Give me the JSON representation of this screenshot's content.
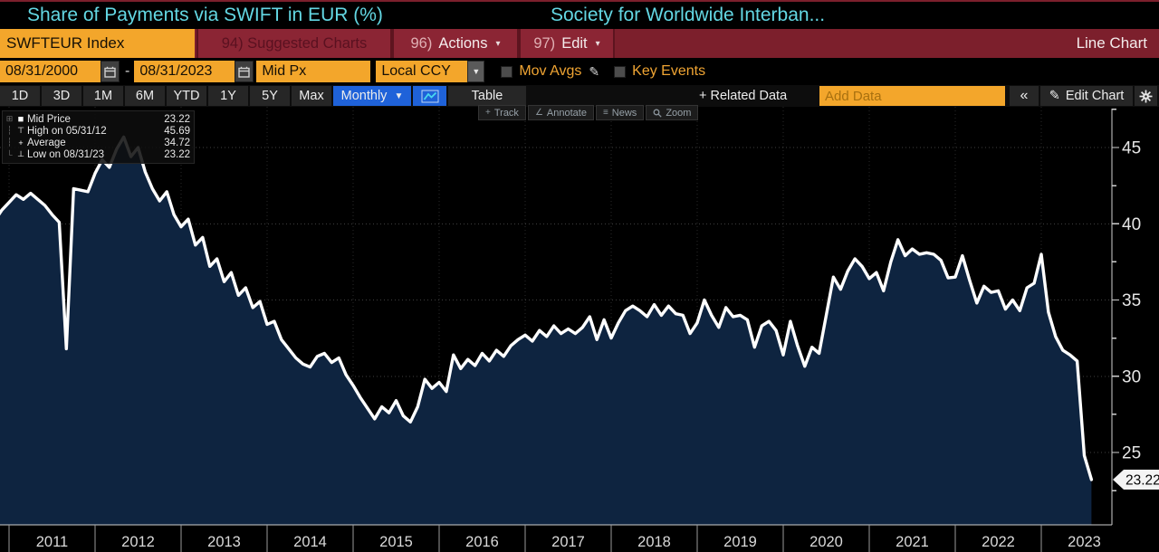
{
  "title_bar": {
    "title": "Share of Payments via SWIFT in EUR (%)",
    "subtitle": "Society for Worldwide Interban..."
  },
  "menu_bar": {
    "ticker": "SWFTEUR Index",
    "suggested_charts": "94) Suggested Charts",
    "actions_num": "96)",
    "actions_label": "Actions",
    "edit_num": "97)",
    "edit_label": "Edit",
    "right_label": "Line Chart"
  },
  "settings_bar": {
    "date_from": "08/31/2000",
    "date_sep": "-",
    "date_to": "08/31/2023",
    "price_field": "Mid Px",
    "currency": "Local CCY",
    "mov_avgs_label": "Mov Avgs",
    "key_events_label": "Key Events"
  },
  "toolbar": {
    "periods": [
      "1D",
      "3D",
      "1M",
      "6M",
      "YTD",
      "1Y",
      "5Y",
      "Max"
    ],
    "frequency": "Monthly",
    "table_label": "Table",
    "related_data_label": "+ Related Data",
    "add_data_placeholder": "Add Data",
    "collapse_label": "«",
    "edit_chart_label": "Edit Chart"
  },
  "chart_tools": {
    "track": "Track",
    "annotate": "Annotate",
    "news": "News",
    "zoom": "Zoom"
  },
  "legend": {
    "items": [
      {
        "tree": "⊞",
        "icon": "■",
        "label": "Mid Price",
        "value": "23.22"
      },
      {
        "tree": "┆",
        "icon": "⊤",
        "label": "High on 05/31/12",
        "value": "45.69"
      },
      {
        "tree": "┆",
        "icon": "+",
        "label": "Average",
        "value": "34.72"
      },
      {
        "tree": "└",
        "icon": "⊥",
        "label": "Low on 08/31/23",
        "value": "23.22"
      }
    ]
  },
  "last_price_tag": "23.22",
  "colors": {
    "accent_orange": "#f3a62b",
    "accent_red": "#7c1f2c",
    "accent_blue": "#1f62d9",
    "title_cyan": "#63d7e3",
    "line": "#ffffff",
    "area_fill": "#0e2440"
  },
  "chart_data": {
    "type": "line",
    "series_name": "Mid Price",
    "title": "Share of Payments via SWIFT in EUR (%)",
    "start": "2010-11",
    "frequency": "monthly",
    "values": [
      40.2,
      40.9,
      41.4,
      41.9,
      41.6,
      42.0,
      41.6,
      41.2,
      40.6,
      40.1,
      31.8,
      42.3,
      42.2,
      42.1,
      43.3,
      44.2,
      43.7,
      44.9,
      45.69,
      44.4,
      45.0,
      43.4,
      42.3,
      41.5,
      42.1,
      40.6,
      39.8,
      40.3,
      38.6,
      39.1,
      37.2,
      37.7,
      36.2,
      36.8,
      35.3,
      35.8,
      34.5,
      34.9,
      33.4,
      33.6,
      32.4,
      31.8,
      31.2,
      30.8,
      30.6,
      31.3,
      31.5,
      30.9,
      31.2,
      30.1,
      29.4,
      28.6,
      27.9,
      27.2,
      28.0,
      27.6,
      28.4,
      27.4,
      27.0,
      28.0,
      29.8,
      29.2,
      29.6,
      29.0,
      31.4,
      30.5,
      31.1,
      30.7,
      31.5,
      31.0,
      31.7,
      31.3,
      32.0,
      32.4,
      32.7,
      32.3,
      33.0,
      32.6,
      33.3,
      32.8,
      33.1,
      32.8,
      33.2,
      33.9,
      32.4,
      33.7,
      32.5,
      33.5,
      34.3,
      34.6,
      34.3,
      33.9,
      34.7,
      34.0,
      34.6,
      34.1,
      34.0,
      32.8,
      33.5,
      35.0,
      34.0,
      33.2,
      34.5,
      33.9,
      34.0,
      33.7,
      31.9,
      33.3,
      33.6,
      33.0,
      31.4,
      33.6,
      32.0,
      30.65,
      31.9,
      31.5,
      34.0,
      36.5,
      35.7,
      36.9,
      37.7,
      37.2,
      36.4,
      36.8,
      35.6,
      37.5,
      38.95,
      37.9,
      38.35,
      38.0,
      38.1,
      38.0,
      37.6,
      36.45,
      36.5,
      37.9,
      36.3,
      34.8,
      35.9,
      35.5,
      35.6,
      34.4,
      35.0,
      34.3,
      35.8,
      36.1,
      38.0,
      34.2,
      32.6,
      31.7,
      31.4,
      31.0,
      24.8,
      23.22
    ],
    "categories": [
      "2011",
      "2012",
      "2013",
      "2014",
      "2015",
      "2016",
      "2017",
      "2018",
      "2019",
      "2020",
      "2021",
      "2022",
      "2023"
    ],
    "yticks": [
      45,
      40,
      35,
      30,
      25
    ],
    "ylim": [
      20.25,
      47.67
    ],
    "high": {
      "date": "05/31/12",
      "value": 45.69
    },
    "average": 34.72,
    "low": {
      "date": "08/31/23",
      "value": 23.22
    },
    "last_value": 23.22,
    "grid": true,
    "legend_position": "top-left"
  }
}
